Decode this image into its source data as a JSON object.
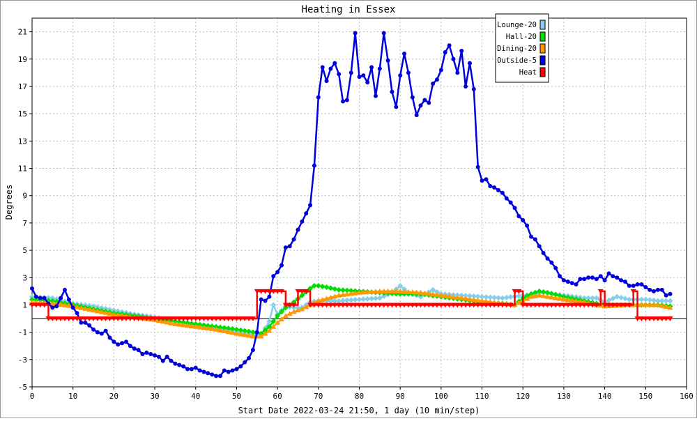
{
  "chart_data": {
    "type": "line",
    "title": "Heating in Essex",
    "xlabel": "Start Date 2022-03-24 21:50, 1 day (10 min/step)",
    "ylabel": "Degrees",
    "xlim": [
      0,
      160
    ],
    "ylim": [
      -5,
      22
    ],
    "xticks": [
      0,
      10,
      20,
      30,
      40,
      50,
      60,
      70,
      80,
      90,
      100,
      110,
      120,
      130,
      140,
      150,
      160
    ],
    "yticks": [
      -5,
      -3,
      -1,
      1,
      3,
      5,
      7,
      9,
      11,
      13,
      15,
      17,
      19,
      21
    ],
    "grid": true,
    "legend_position": "top-right",
    "series": [
      {
        "name": "Lounge-20",
        "color": "#87ceeb",
        "marker": "diamond",
        "points": [
          [
            0,
            1.6
          ],
          [
            5,
            1.5
          ],
          [
            10,
            1.1
          ],
          [
            15,
            0.9
          ],
          [
            20,
            0.6
          ],
          [
            25,
            0.3
          ],
          [
            30,
            0.1
          ],
          [
            35,
            -0.2
          ],
          [
            40,
            -0.5
          ],
          [
            45,
            -0.7
          ],
          [
            50,
            -1.0
          ],
          [
            54,
            -1.2
          ],
          [
            56,
            -1.2
          ],
          [
            58,
            -0.2
          ],
          [
            59,
            1.0
          ],
          [
            60,
            0.3
          ],
          [
            62,
            0.9
          ],
          [
            64,
            0.8
          ],
          [
            66,
            0.8
          ],
          [
            68,
            1.2
          ],
          [
            70,
            1.3
          ],
          [
            75,
            1.3
          ],
          [
            80,
            1.4
          ],
          [
            85,
            1.5
          ],
          [
            88,
            1.9
          ],
          [
            90,
            2.4
          ],
          [
            92,
            1.9
          ],
          [
            95,
            1.6
          ],
          [
            98,
            2.1
          ],
          [
            100,
            1.8
          ],
          [
            105,
            1.7
          ],
          [
            110,
            1.6
          ],
          [
            115,
            1.5
          ],
          [
            120,
            1.7
          ],
          [
            123,
            1.8
          ],
          [
            125,
            1.9
          ],
          [
            130,
            1.7
          ],
          [
            135,
            1.5
          ],
          [
            138,
            1.5
          ],
          [
            140,
            1.2
          ],
          [
            143,
            1.6
          ],
          [
            146,
            1.4
          ],
          [
            150,
            1.4
          ],
          [
            153,
            1.3
          ],
          [
            156,
            1.3
          ]
        ]
      },
      {
        "name": "Hall-20",
        "color": "#00dd00",
        "marker": "diamond",
        "points": [
          [
            0,
            1.4
          ],
          [
            5,
            1.3
          ],
          [
            10,
            1.0
          ],
          [
            15,
            0.7
          ],
          [
            20,
            0.4
          ],
          [
            25,
            0.2
          ],
          [
            30,
            0.0
          ],
          [
            35,
            -0.2
          ],
          [
            40,
            -0.4
          ],
          [
            45,
            -0.6
          ],
          [
            50,
            -0.8
          ],
          [
            54,
            -1.0
          ],
          [
            56,
            -1.1
          ],
          [
            58,
            -0.6
          ],
          [
            60,
            0.2
          ],
          [
            62,
            0.8
          ],
          [
            64,
            1.2
          ],
          [
            66,
            1.7
          ],
          [
            68,
            2.2
          ],
          [
            69,
            2.4
          ],
          [
            70,
            2.4
          ],
          [
            72,
            2.3
          ],
          [
            75,
            2.1
          ],
          [
            80,
            2.0
          ],
          [
            85,
            1.9
          ],
          [
            90,
            1.8
          ],
          [
            95,
            1.8
          ],
          [
            100,
            1.6
          ],
          [
            105,
            1.4
          ],
          [
            110,
            1.2
          ],
          [
            115,
            1.1
          ],
          [
            118,
            1.0
          ],
          [
            120,
            1.5
          ],
          [
            122,
            1.8
          ],
          [
            124,
            2.0
          ],
          [
            126,
            1.9
          ],
          [
            130,
            1.6
          ],
          [
            135,
            1.3
          ],
          [
            138,
            1.1
          ],
          [
            140,
            1.0
          ],
          [
            145,
            1.0
          ],
          [
            150,
            1.0
          ],
          [
            153,
            1.0
          ],
          [
            156,
            0.9
          ]
        ]
      },
      {
        "name": "Dining-20",
        "color": "#ff9900",
        "marker": "triangle",
        "points": [
          [
            0,
            1.2
          ],
          [
            5,
            1.1
          ],
          [
            10,
            0.9
          ],
          [
            15,
            0.6
          ],
          [
            20,
            0.3
          ],
          [
            25,
            0.1
          ],
          [
            30,
            -0.1
          ],
          [
            35,
            -0.4
          ],
          [
            40,
            -0.6
          ],
          [
            45,
            -0.8
          ],
          [
            50,
            -1.1
          ],
          [
            54,
            -1.3
          ],
          [
            56,
            -1.3
          ],
          [
            58,
            -0.9
          ],
          [
            60,
            -0.3
          ],
          [
            62,
            0.2
          ],
          [
            64,
            0.5
          ],
          [
            66,
            0.7
          ],
          [
            68,
            1.0
          ],
          [
            70,
            1.3
          ],
          [
            75,
            1.7
          ],
          [
            80,
            1.9
          ],
          [
            85,
            2.0
          ],
          [
            90,
            2.0
          ],
          [
            95,
            1.9
          ],
          [
            100,
            1.7
          ],
          [
            105,
            1.5
          ],
          [
            110,
            1.3
          ],
          [
            115,
            1.1
          ],
          [
            118,
            1.0
          ],
          [
            120,
            1.3
          ],
          [
            122,
            1.6
          ],
          [
            124,
            1.7
          ],
          [
            126,
            1.6
          ],
          [
            130,
            1.4
          ],
          [
            135,
            1.2
          ],
          [
            138,
            1.0
          ],
          [
            140,
            0.9
          ],
          [
            145,
            1.0
          ],
          [
            150,
            1.0
          ],
          [
            153,
            1.0
          ],
          [
            156,
            0.8
          ]
        ]
      },
      {
        "name": "Outside-5",
        "color": "#0000dd",
        "marker": "circle",
        "points": [
          [
            0,
            2.2
          ],
          [
            1,
            1.6
          ],
          [
            2,
            1.5
          ],
          [
            3,
            1.5
          ],
          [
            4,
            1.1
          ],
          [
            5,
            0.8
          ],
          [
            6,
            0.9
          ],
          [
            7,
            1.5
          ],
          [
            8,
            2.1
          ],
          [
            9,
            1.4
          ],
          [
            10,
            0.8
          ],
          [
            11,
            0.4
          ],
          [
            12,
            -0.3
          ],
          [
            13,
            -0.3
          ],
          [
            14,
            -0.5
          ],
          [
            15,
            -0.8
          ],
          [
            16,
            -1.0
          ],
          [
            17,
            -1.1
          ],
          [
            18,
            -0.9
          ],
          [
            19,
            -1.4
          ],
          [
            20,
            -1.7
          ],
          [
            21,
            -1.9
          ],
          [
            22,
            -1.8
          ],
          [
            23,
            -1.7
          ],
          [
            24,
            -2.0
          ],
          [
            25,
            -2.2
          ],
          [
            26,
            -2.3
          ],
          [
            27,
            -2.6
          ],
          [
            28,
            -2.5
          ],
          [
            29,
            -2.6
          ],
          [
            30,
            -2.7
          ],
          [
            31,
            -2.8
          ],
          [
            32,
            -3.1
          ],
          [
            33,
            -2.8
          ],
          [
            34,
            -3.1
          ],
          [
            35,
            -3.3
          ],
          [
            36,
            -3.4
          ],
          [
            37,
            -3.5
          ],
          [
            38,
            -3.7
          ],
          [
            39,
            -3.7
          ],
          [
            40,
            -3.6
          ],
          [
            41,
            -3.8
          ],
          [
            42,
            -3.9
          ],
          [
            43,
            -4.0
          ],
          [
            44,
            -4.1
          ],
          [
            45,
            -4.2
          ],
          [
            46,
            -4.2
          ],
          [
            47,
            -3.8
          ],
          [
            48,
            -3.9
          ],
          [
            49,
            -3.8
          ],
          [
            50,
            -3.7
          ],
          [
            51,
            -3.5
          ],
          [
            52,
            -3.2
          ],
          [
            53,
            -2.9
          ],
          [
            54,
            -2.3
          ],
          [
            55,
            -1.0
          ],
          [
            56,
            1.4
          ],
          [
            57,
            1.3
          ],
          [
            58,
            1.6
          ],
          [
            59,
            3.1
          ],
          [
            60,
            3.4
          ],
          [
            61,
            3.9
          ],
          [
            62,
            5.2
          ],
          [
            63,
            5.3
          ],
          [
            64,
            5.8
          ],
          [
            65,
            6.5
          ],
          [
            66,
            7.1
          ],
          [
            67,
            7.7
          ],
          [
            68,
            8.3
          ],
          [
            69,
            11.2
          ],
          [
            70,
            16.2
          ],
          [
            71,
            18.4
          ],
          [
            72,
            17.4
          ],
          [
            73,
            18.3
          ],
          [
            74,
            18.7
          ],
          [
            75,
            17.9
          ],
          [
            76,
            15.9
          ],
          [
            77,
            16.0
          ],
          [
            78,
            18.0
          ],
          [
            79,
            20.9
          ],
          [
            80,
            17.7
          ],
          [
            81,
            17.8
          ],
          [
            82,
            17.3
          ],
          [
            83,
            18.4
          ],
          [
            84,
            16.3
          ],
          [
            85,
            18.3
          ],
          [
            86,
            20.9
          ],
          [
            87,
            18.9
          ],
          [
            88,
            16.6
          ],
          [
            89,
            15.5
          ],
          [
            90,
            17.8
          ],
          [
            91,
            19.4
          ],
          [
            92,
            18.0
          ],
          [
            93,
            16.2
          ],
          [
            94,
            14.9
          ],
          [
            95,
            15.6
          ],
          [
            96,
            16.0
          ],
          [
            97,
            15.8
          ],
          [
            98,
            17.2
          ],
          [
            99,
            17.5
          ],
          [
            100,
            18.2
          ],
          [
            101,
            19.5
          ],
          [
            102,
            20.0
          ],
          [
            103,
            19.0
          ],
          [
            104,
            18.0
          ],
          [
            105,
            19.6
          ],
          [
            106,
            17.0
          ],
          [
            107,
            18.7
          ],
          [
            108,
            16.8
          ],
          [
            109,
            11.1
          ],
          [
            110,
            10.1
          ],
          [
            111,
            10.2
          ],
          [
            112,
            9.7
          ],
          [
            113,
            9.6
          ],
          [
            114,
            9.4
          ],
          [
            115,
            9.2
          ],
          [
            116,
            8.8
          ],
          [
            117,
            8.5
          ],
          [
            118,
            8.1
          ],
          [
            119,
            7.5
          ],
          [
            120,
            7.2
          ],
          [
            121,
            6.8
          ],
          [
            122,
            6.0
          ],
          [
            123,
            5.8
          ],
          [
            124,
            5.3
          ],
          [
            125,
            4.8
          ],
          [
            126,
            4.4
          ],
          [
            127,
            4.1
          ],
          [
            128,
            3.7
          ],
          [
            129,
            3.1
          ],
          [
            130,
            2.8
          ],
          [
            131,
            2.7
          ],
          [
            132,
            2.6
          ],
          [
            133,
            2.5
          ],
          [
            134,
            2.9
          ],
          [
            135,
            2.9
          ],
          [
            136,
            3.0
          ],
          [
            137,
            3.0
          ],
          [
            138,
            2.9
          ],
          [
            139,
            3.1
          ],
          [
            140,
            2.8
          ],
          [
            141,
            3.3
          ],
          [
            142,
            3.1
          ],
          [
            143,
            3.0
          ],
          [
            144,
            2.8
          ],
          [
            145,
            2.7
          ],
          [
            146,
            2.4
          ],
          [
            147,
            2.4
          ],
          [
            148,
            2.5
          ],
          [
            149,
            2.5
          ],
          [
            150,
            2.3
          ],
          [
            151,
            2.1
          ],
          [
            152,
            2.0
          ],
          [
            153,
            2.1
          ],
          [
            154,
            2.1
          ],
          [
            155,
            1.7
          ],
          [
            156,
            1.8
          ]
        ]
      },
      {
        "name": "Heat",
        "color": "#ff0000",
        "marker": "triangle-down",
        "points": [
          [
            0,
            1
          ],
          [
            3,
            1
          ],
          [
            4,
            0
          ],
          [
            54,
            0
          ],
          [
            55,
            2
          ],
          [
            61,
            2
          ],
          [
            62,
            1
          ],
          [
            64,
            1
          ],
          [
            65,
            2
          ],
          [
            67,
            2
          ],
          [
            68,
            1
          ],
          [
            117,
            1
          ],
          [
            118,
            2
          ],
          [
            119,
            2
          ],
          [
            120,
            1
          ],
          [
            138,
            1
          ],
          [
            139,
            2
          ],
          [
            140,
            1
          ],
          [
            146,
            1
          ],
          [
            147,
            2
          ],
          [
            148,
            0
          ],
          [
            156,
            0
          ]
        ]
      }
    ]
  }
}
